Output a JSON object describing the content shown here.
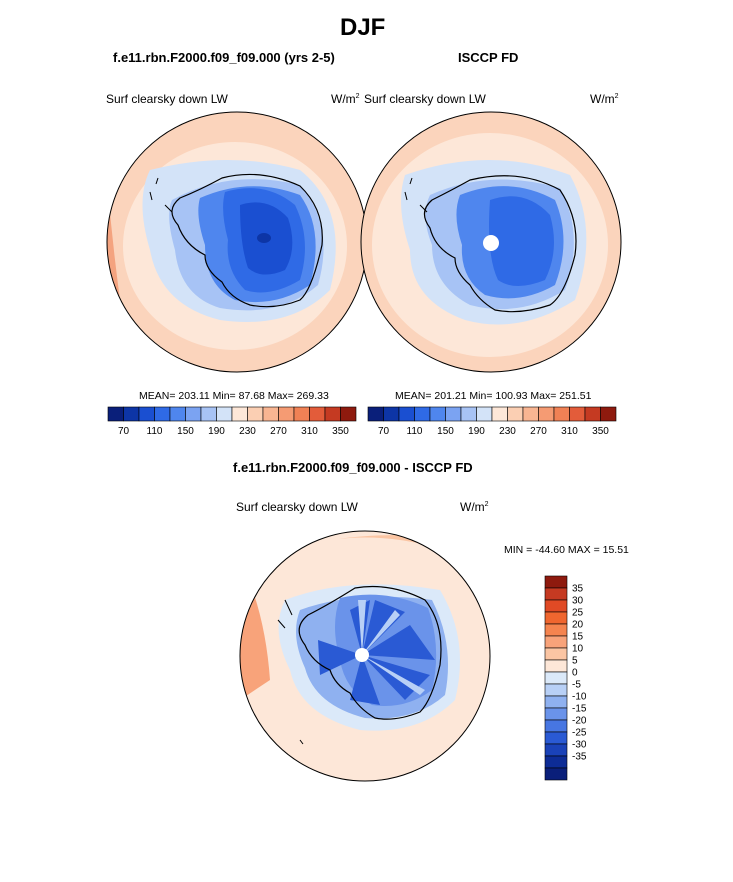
{
  "page": {
    "title": "DJF"
  },
  "panels": [
    {
      "case_title": "f.e11.rbn.F2000.f09_f09.000 (yrs 2-5)",
      "variable": "Surf clearsky down LW",
      "units": "W/m",
      "units_sup": "2",
      "stats": "MEAN= 203.11  Min=  87.68  Max= 269.33"
    },
    {
      "case_title": "ISCCP FD",
      "variable": "Surf clearsky down LW",
      "units": "W/m",
      "units_sup": "2",
      "stats": "MEAN= 201.21  Min= 100.93  Max= 251.51"
    },
    {
      "case_title": "f.e11.rbn.F2000.f09_f09.000 - ISCCP FD",
      "variable": "Surf clearsky down LW",
      "units": "W/m",
      "units_sup": "2",
      "stats": "MIN = -44.60 MAX =  15.51"
    }
  ],
  "colorbars": {
    "horizontal": {
      "colors": [
        "#0a1f7a",
        "#0d35a6",
        "#1a4fd1",
        "#2f6ae6",
        "#4f86ee",
        "#7ba3f2",
        "#a7c3f5",
        "#d3e3f8",
        "#fde7d8",
        "#fbcfb3",
        "#f8b592",
        "#f59b73",
        "#f08155",
        "#e35c3a",
        "#c53a22",
        "#8e1a0e"
      ],
      "tick_labels": [
        "70",
        "110",
        "150",
        "190",
        "230",
        "270",
        "310",
        "350"
      ]
    },
    "vertical": {
      "colors": [
        "#8e1a0e",
        "#c53a22",
        "#e04a25",
        "#f0662f",
        "#f5844f",
        "#f8a37a",
        "#fbc5a3",
        "#fde7d8",
        "#dbe9f9",
        "#b8d0f6",
        "#8fb1f0",
        "#6a93ea",
        "#4776e2",
        "#2a5ad4",
        "#1a42b8",
        "#0d2c96",
        "#0a1f7a"
      ],
      "tick_labels": [
        "35",
        "30",
        "25",
        "20",
        "15",
        "10",
        "5",
        "0",
        "-5",
        "-10",
        "-15",
        "-20",
        "-25",
        "-30",
        "-35"
      ]
    }
  },
  "chart_data": [
    {
      "type": "heatmap",
      "title": "f.e11.rbn.F2000.f09_f09.000 (yrs 2-5)",
      "variable": "Surf clearsky down LW",
      "units": "W/m2",
      "projection": "south-polar-stereographic",
      "mean": 203.11,
      "min": 87.68,
      "max": 269.33,
      "contour_levels": [
        70,
        110,
        150,
        190,
        230,
        270,
        310,
        350
      ]
    },
    {
      "type": "heatmap",
      "title": "ISCCP FD",
      "variable": "Surf clearsky down LW",
      "units": "W/m2",
      "projection": "south-polar-stereographic",
      "mean": 201.21,
      "min": 100.93,
      "max": 251.51,
      "contour_levels": [
        70,
        110,
        150,
        190,
        230,
        270,
        310,
        350
      ]
    },
    {
      "type": "heatmap",
      "title": "f.e11.rbn.F2000.f09_f09.000 - ISCCP FD",
      "variable": "Surf clearsky down LW",
      "units": "W/m2",
      "projection": "south-polar-stereographic",
      "min": -44.6,
      "max": 15.51,
      "contour_levels": [
        35,
        30,
        25,
        20,
        15,
        10,
        5,
        0,
        -5,
        -10,
        -15,
        -20,
        -25,
        -30,
        -35
      ]
    }
  ]
}
